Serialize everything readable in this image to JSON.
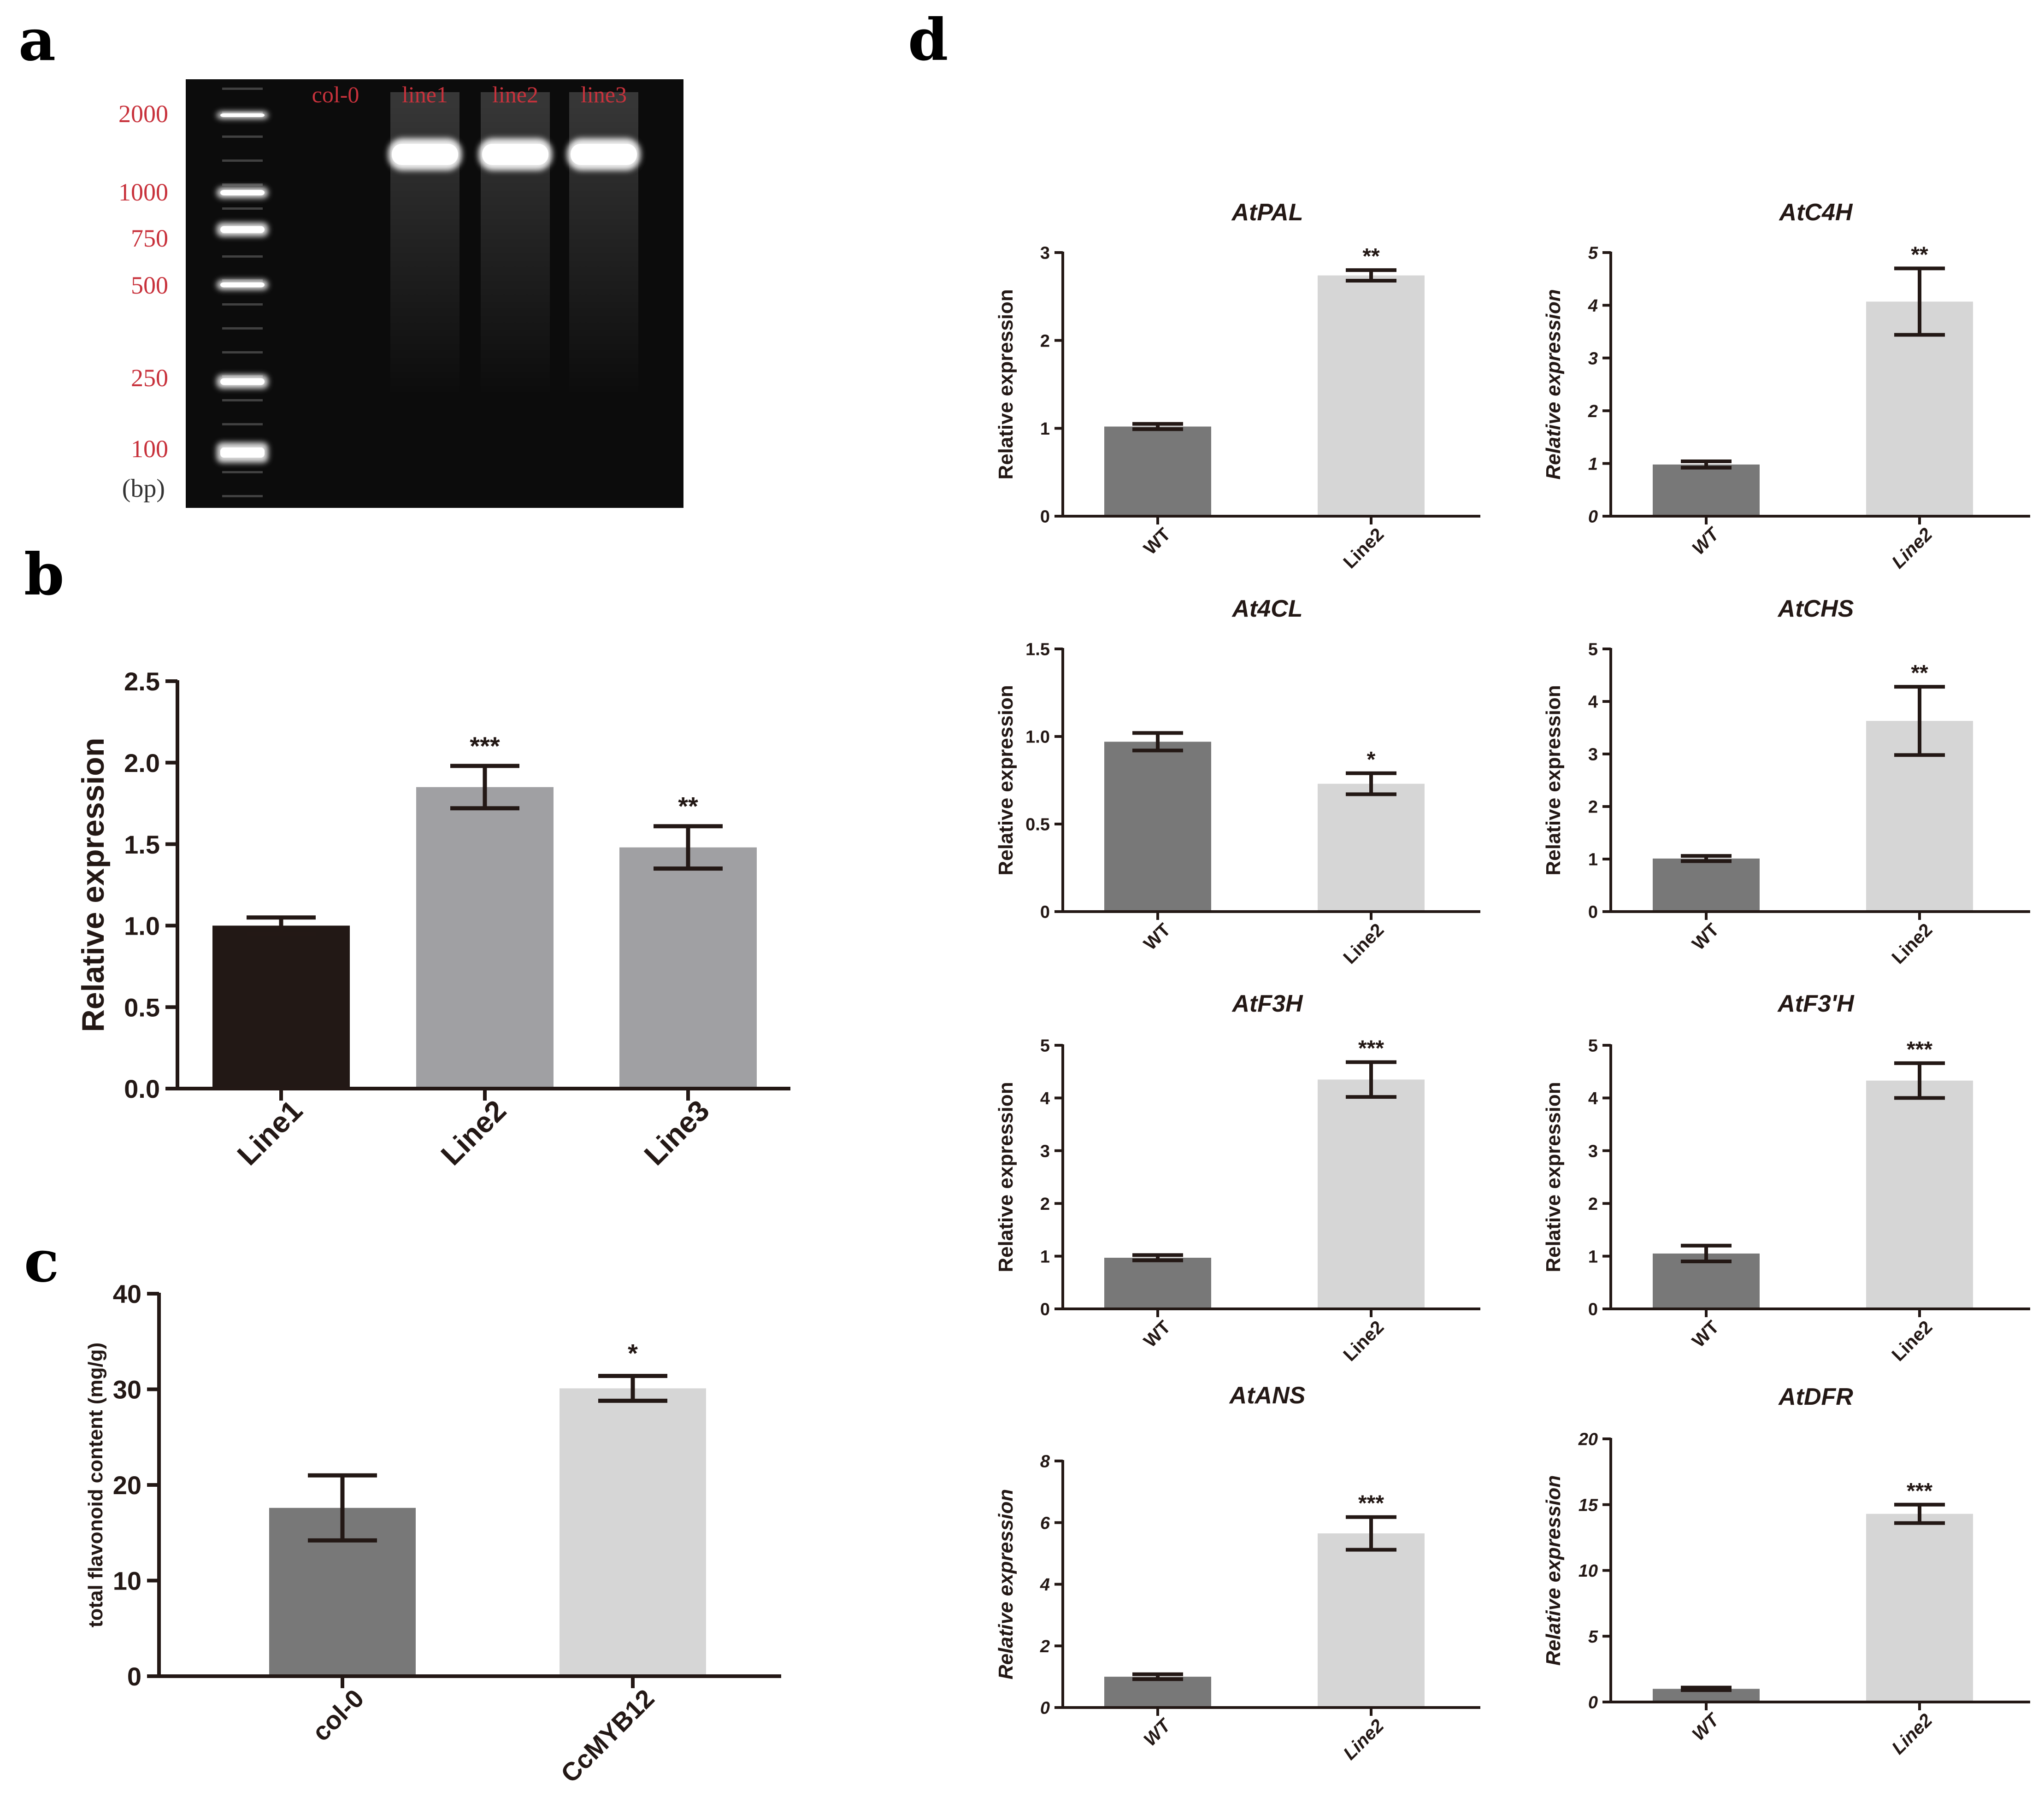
{
  "figure": {
    "panel_labels": [
      "a",
      "b",
      "c",
      "d"
    ]
  },
  "colors": {
    "dark_bar": "#221815",
    "mid_bar": "#a0a0a3",
    "wt_bar": "#787878",
    "light_bar": "#d6d6d6",
    "gel_label": "#c8323c"
  },
  "gel": {
    "ladder_labels": [
      "2000",
      "1000",
      "750",
      "500",
      "250",
      "100"
    ],
    "unit_label": "(bp)",
    "lane_labels": [
      "col-0",
      "line1",
      "line2",
      "line3"
    ]
  },
  "chart_data": [
    {
      "id": "b",
      "type": "bar",
      "categories": [
        "Line1",
        "Line2",
        "Line3"
      ],
      "values": [
        1.0,
        1.85,
        1.48
      ],
      "errors": [
        0.05,
        0.13,
        0.13
      ],
      "significance": [
        "",
        "***",
        "**"
      ],
      "ylabel": "Relative expression",
      "ylim": [
        0,
        2.5
      ],
      "yticks": [
        "0.0",
        "0.5",
        "1.0",
        "1.5",
        "2.0",
        "2.5"
      ],
      "bar_colors": [
        "#221815",
        "#a0a0a3",
        "#a0a0a3"
      ]
    },
    {
      "id": "c",
      "type": "bar",
      "categories": [
        "col-0",
        "CcMYB12"
      ],
      "values": [
        17.6,
        30.1
      ],
      "errors": [
        3.4,
        1.3
      ],
      "significance": [
        "",
        "*"
      ],
      "ylabel": "total flavonoid content (mg/g)",
      "ylim": [
        0,
        40
      ],
      "yticks": [
        "0",
        "10",
        "20",
        "30",
        "40"
      ],
      "bar_colors": [
        "#787878",
        "#d6d6d6"
      ]
    },
    {
      "id": "d1",
      "type": "bar",
      "title": "AtPAL",
      "categories": [
        "WT",
        "Line2"
      ],
      "values": [
        1.02,
        2.74
      ],
      "errors": [
        0.03,
        0.06
      ],
      "significance": [
        "",
        "**"
      ],
      "ylabel": "Relative expression",
      "ylim": [
        0,
        3
      ],
      "yticks": [
        "0",
        "1",
        "2",
        "3"
      ]
    },
    {
      "id": "d2",
      "type": "bar",
      "title": "AtC4H",
      "categories": [
        "WT",
        "Line2"
      ],
      "values": [
        0.98,
        4.07
      ],
      "errors": [
        0.06,
        0.63
      ],
      "significance": [
        "",
        "**"
      ],
      "ylabel": "Relative expression",
      "ylim": [
        0,
        5
      ],
      "yticks": [
        "0",
        "1",
        "2",
        "3",
        "4",
        "5"
      ]
    },
    {
      "id": "d3",
      "type": "bar",
      "title": "At4CL",
      "categories": [
        "WT",
        "Line2"
      ],
      "values": [
        0.97,
        0.73
      ],
      "errors": [
        0.05,
        0.06
      ],
      "significance": [
        "",
        "*"
      ],
      "ylabel": "Relative expression",
      "ylim": [
        0,
        1.5
      ],
      "yticks": [
        "0",
        "0.5",
        "1.0",
        "1.5"
      ]
    },
    {
      "id": "d4",
      "type": "bar",
      "title": "AtCHS",
      "categories": [
        "WT",
        "Line2"
      ],
      "values": [
        1.01,
        3.63
      ],
      "errors": [
        0.05,
        0.65
      ],
      "significance": [
        "",
        "**"
      ],
      "ylabel": "Relative expression",
      "ylim": [
        0,
        5
      ],
      "yticks": [
        "0",
        "1",
        "2",
        "3",
        "4",
        "5"
      ]
    },
    {
      "id": "d5",
      "type": "bar",
      "title": "AtF3H",
      "categories": [
        "WT",
        "Line2"
      ],
      "values": [
        0.97,
        4.35
      ],
      "errors": [
        0.05,
        0.33
      ],
      "significance": [
        "",
        "***"
      ],
      "ylabel": "Relative expression",
      "ylim": [
        0,
        5
      ],
      "yticks": [
        "0",
        "1",
        "2",
        "3",
        "4",
        "5"
      ]
    },
    {
      "id": "d6",
      "type": "bar",
      "title": "AtF3'H",
      "categories": [
        "WT",
        "Line2"
      ],
      "values": [
        1.05,
        4.33
      ],
      "errors": [
        0.15,
        0.33
      ],
      "significance": [
        "",
        "***"
      ],
      "ylabel": "Relative expression",
      "ylim": [
        0,
        5
      ],
      "yticks": [
        "0",
        "1",
        "2",
        "3",
        "4",
        "5"
      ]
    },
    {
      "id": "d7",
      "type": "bar",
      "title": "AtANS",
      "categories": [
        "WT",
        "Line2"
      ],
      "values": [
        1.0,
        5.65
      ],
      "errors": [
        0.08,
        0.53
      ],
      "significance": [
        "",
        "***"
      ],
      "ylabel": "Relative expression",
      "ylim": [
        0,
        8
      ],
      "yticks": [
        "0",
        "2",
        "4",
        "6",
        "8"
      ]
    },
    {
      "id": "d8",
      "type": "bar",
      "title": "AtDFR",
      "categories": [
        "WT",
        "Line2"
      ],
      "values": [
        1.0,
        14.3
      ],
      "errors": [
        0.1,
        0.7
      ],
      "significance": [
        "",
        "***"
      ],
      "ylabel": "Relative expression",
      "ylim": [
        0,
        20
      ],
      "yticks": [
        "0",
        "5",
        "10",
        "15",
        "20"
      ]
    }
  ]
}
